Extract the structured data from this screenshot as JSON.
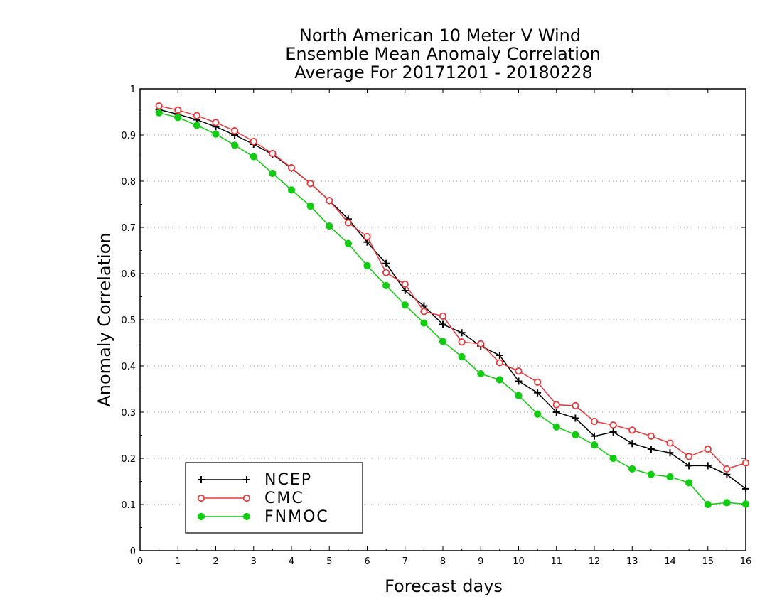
{
  "chart_data": {
    "type": "line",
    "title": [
      "North American 10 Meter V Wind",
      "Ensemble Mean Anomaly Correlation",
      "Average For 20171201 - 20180228"
    ],
    "xlabel": "Forecast days",
    "ylabel": "Anomaly Correlation",
    "xlim": [
      0,
      16
    ],
    "ylim": [
      0,
      1
    ],
    "xticks": [
      "0",
      "1",
      "2",
      "3",
      "4",
      "5",
      "6",
      "7",
      "8",
      "9",
      "10",
      "11",
      "12",
      "13",
      "14",
      "15",
      "16"
    ],
    "yticks": [
      "0",
      "0.1",
      "0.2",
      "0.3",
      "0.4",
      "0.5",
      "0.6",
      "0.7",
      "0.8",
      "0.9",
      "1"
    ],
    "grid": "horizontal dotted",
    "legend_position": "bottom-left",
    "x": [
      0.5,
      1,
      1.5,
      2,
      2.5,
      3,
      3.5,
      4,
      4.5,
      5,
      5.5,
      6,
      6.5,
      7,
      7.5,
      8,
      8.5,
      9,
      9.5,
      10,
      10.5,
      11,
      11.5,
      12,
      12.5,
      13,
      13.5,
      14,
      14.5,
      15,
      15.5,
      16
    ],
    "series": [
      {
        "name": "NCEP",
        "color": "#000000",
        "marker": "plus",
        "values": [
          0.955,
          0.945,
          0.933,
          0.918,
          0.9,
          0.88,
          0.858,
          0.828,
          0.795,
          0.758,
          0.718,
          0.668,
          0.622,
          0.563,
          0.53,
          0.49,
          0.472,
          0.443,
          0.423,
          0.367,
          0.342,
          0.3,
          0.287,
          0.248,
          0.257,
          0.232,
          0.22,
          0.212,
          0.184,
          0.184,
          0.165,
          0.134
        ]
      },
      {
        "name": "CMC",
        "color": "#e8383c",
        "marker": "open-circle",
        "values": [
          0.963,
          0.954,
          0.942,
          0.927,
          0.909,
          0.886,
          0.86,
          0.829,
          0.795,
          0.758,
          0.71,
          0.68,
          0.602,
          0.577,
          0.518,
          0.508,
          0.452,
          0.448,
          0.407,
          0.389,
          0.365,
          0.316,
          0.314,
          0.28,
          0.272,
          0.261,
          0.248,
          0.233,
          0.204,
          0.22,
          0.177,
          0.19
        ]
      },
      {
        "name": "FNMOC",
        "color": "#11cc11",
        "marker": "filled-circle",
        "values": [
          0.948,
          0.938,
          0.921,
          0.902,
          0.878,
          0.853,
          0.817,
          0.781,
          0.746,
          0.703,
          0.665,
          0.617,
          0.574,
          0.532,
          0.493,
          0.453,
          0.42,
          0.383,
          0.37,
          0.336,
          0.296,
          0.268,
          0.251,
          0.229,
          0.2,
          0.177,
          0.165,
          0.16,
          0.147,
          0.1,
          0.104,
          0.101
        ]
      }
    ]
  }
}
